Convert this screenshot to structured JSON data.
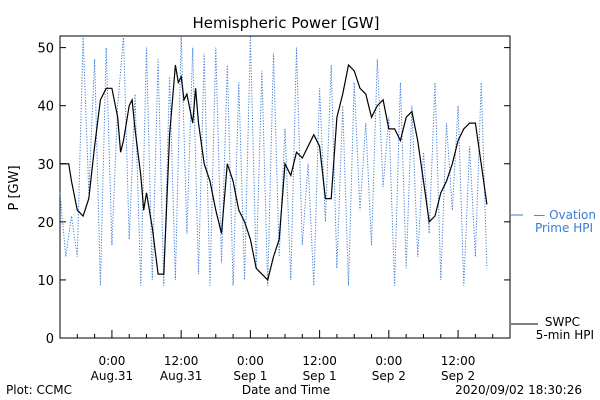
{
  "chart_data": {
    "type": "line",
    "title": "Hemispheric Power [GW]",
    "ylabel": "P [GW]",
    "xlabel": "Date and Time",
    "ylim": [
      0,
      52
    ],
    "xlim_hours": [
      -9,
      69
    ],
    "yticks": [
      0,
      10,
      20,
      30,
      40,
      50
    ],
    "xticks": [
      {
        "h": 0,
        "l1": "0:00",
        "l2": "Aug.31"
      },
      {
        "h": 12,
        "l1": "12:00",
        "l2": "Aug.31"
      },
      {
        "h": 24,
        "l1": "0:00",
        "l2": "Sep 1"
      },
      {
        "h": 36,
        "l1": "12:00",
        "l2": "Sep 1"
      },
      {
        "h": 48,
        "l1": "0:00",
        "l2": "Sep 2"
      },
      {
        "h": 60,
        "l1": "12:00",
        "l2": "Sep 2"
      }
    ],
    "series": [
      {
        "name": "SWPC 5-min HPI",
        "color": "#000000",
        "style": "solid",
        "x": [
          -9,
          -7.5,
          -7,
          -6,
          -5,
          -4,
          -3,
          -2,
          -1,
          0,
          1,
          1.5,
          2,
          3,
          3.5,
          4,
          5,
          5.5,
          6,
          7,
          8,
          8.5,
          9,
          10,
          11,
          11.5,
          12,
          12.5,
          13,
          14,
          14.5,
          15,
          16,
          17,
          18,
          19,
          20,
          21,
          22,
          23,
          24,
          25,
          26,
          27,
          28,
          29,
          30,
          31,
          32,
          33,
          34,
          35,
          36,
          37,
          38,
          39,
          40,
          41,
          42,
          43,
          44,
          45,
          46,
          47,
          48,
          49,
          50,
          51,
          52,
          53,
          54,
          55,
          56,
          57,
          58,
          59,
          60,
          61,
          62,
          63,
          64,
          65
        ],
        "y": [
          30,
          30,
          27,
          22,
          21,
          24,
          33,
          41,
          43,
          43,
          38,
          32,
          34,
          40,
          41,
          36,
          28,
          22,
          25,
          19,
          11,
          11,
          11,
          35,
          47,
          44,
          45,
          41,
          42,
          37,
          43,
          37,
          30,
          27,
          22,
          18,
          30,
          27,
          22,
          20,
          17,
          12,
          11,
          10,
          14,
          17,
          30,
          28,
          32,
          31,
          33,
          35,
          33,
          24,
          24,
          38,
          42,
          47,
          46,
          43,
          42,
          38,
          40,
          41,
          36,
          36,
          34,
          38,
          39,
          34,
          27,
          20,
          21,
          25,
          27,
          30,
          34,
          36,
          37,
          37,
          30,
          23
        ]
      },
      {
        "name": "Ovation Prime HPI",
        "color": "#3a7bd5",
        "style": "dotted",
        "x": [
          -9,
          -8,
          -7,
          -6,
          -5,
          -4,
          -3,
          -2,
          -1,
          0,
          1,
          2,
          3,
          4,
          5,
          6,
          7,
          8,
          9,
          10,
          11,
          12,
          13,
          14,
          15,
          16,
          17,
          18,
          19,
          20,
          21,
          22,
          23,
          24,
          25,
          26,
          27,
          28,
          29,
          30,
          31,
          32,
          33,
          34,
          35,
          36,
          37,
          38,
          39,
          40,
          41,
          42,
          43,
          44,
          45,
          46,
          47,
          48,
          49,
          50,
          51,
          52,
          53,
          54,
          55,
          56,
          57,
          58,
          59,
          60,
          61,
          62,
          63,
          64,
          65
        ],
        "y": [
          25,
          14,
          21,
          14,
          52,
          25,
          48,
          9,
          50,
          16,
          40,
          52,
          17,
          42,
          9,
          50,
          10,
          48,
          9,
          45,
          10,
          52,
          18,
          50,
          11,
          49,
          9,
          50,
          13,
          47,
          9,
          44,
          10,
          52,
          12,
          46,
          9,
          49,
          14,
          36,
          10,
          50,
          16,
          30,
          9,
          43,
          20,
          47,
          12,
          40,
          9,
          44,
          22,
          37,
          16,
          48,
          26,
          38,
          9,
          44,
          12,
          40,
          14,
          32,
          18,
          44,
          10,
          37,
          22,
          40,
          9,
          33,
          14,
          44,
          12
        ]
      }
    ],
    "legend": [
      {
        "l1": "SWPC",
        "l2": "5-min HPI",
        "color": "#000000"
      },
      {
        "l1": "— Ovation",
        "l2": "Prime HPI",
        "color": "#3a7bd5"
      }
    ],
    "footer_left": "Plot: CCMC",
    "footer_right": "2020/09/02 18:30:26"
  }
}
